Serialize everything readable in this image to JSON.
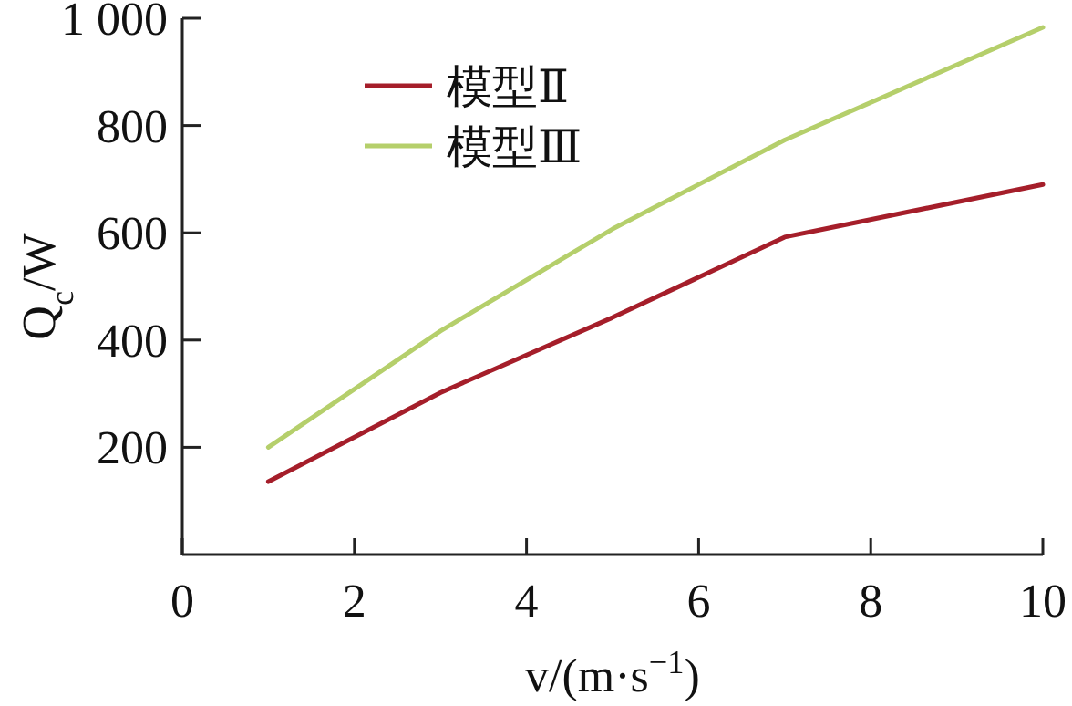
{
  "chart_data": {
    "type": "line",
    "x": [
      1,
      3,
      5,
      7,
      10
    ],
    "series": [
      {
        "name": "模型Ⅱ",
        "color": "#a51e2a",
        "values": [
          136,
          302,
          442,
          592,
          690
        ]
      },
      {
        "name": "模型Ⅲ",
        "color": "#b5cf6b",
        "values": [
          200,
          417,
          607,
          773,
          983
        ]
      }
    ],
    "xlabel": "v/(m·s$^{−1}$)",
    "ylabel": "Q$_{c}$/W",
    "xlim": [
      0,
      10
    ],
    "ylim": [
      0,
      1000
    ],
    "xticks": [
      0,
      2,
      4,
      6,
      8,
      10
    ],
    "yticks": [
      {
        "value": 200,
        "label": "200"
      },
      {
        "value": 400,
        "label": "400"
      },
      {
        "value": 600,
        "label": "600"
      },
      {
        "value": 800,
        "label": "800"
      },
      {
        "value": 1000,
        "label": "1 000"
      }
    ],
    "legend": "top left",
    "grid": false,
    "marker": "none",
    "line_style": "solid"
  }
}
